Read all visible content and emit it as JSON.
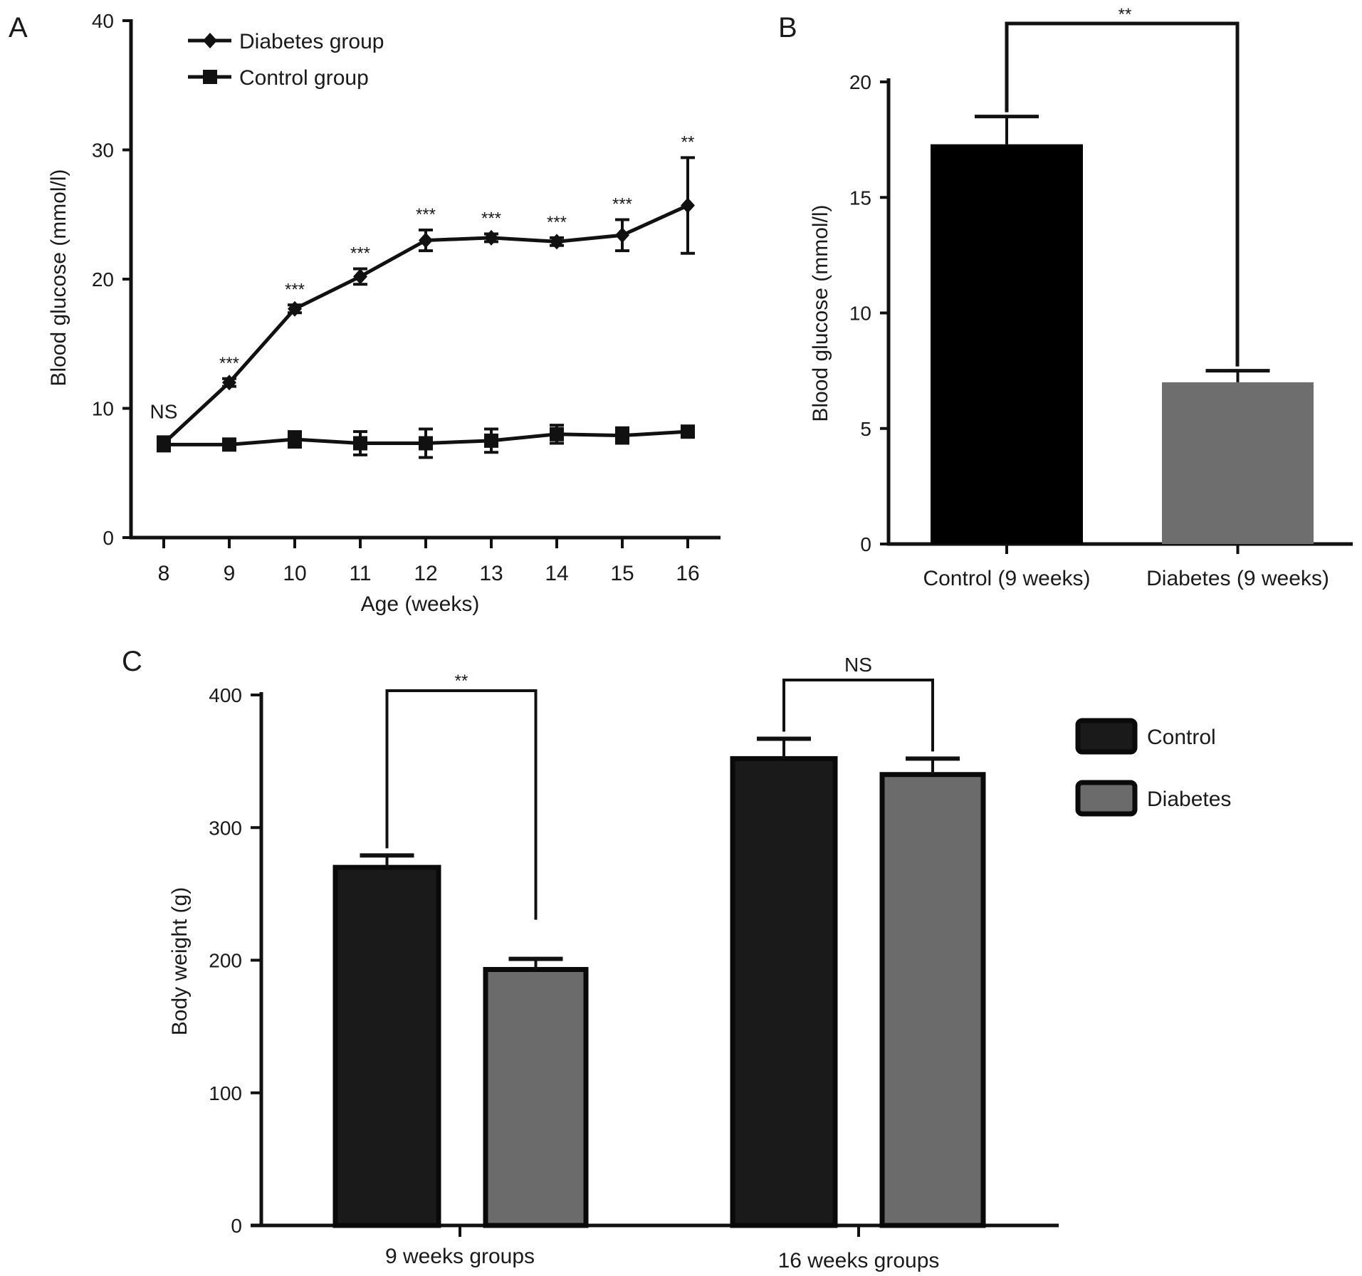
{
  "chart_data": [
    {
      "panel": "A",
      "type": "line",
      "xlabel": "Age (weeks)",
      "ylabel": "Blood glucose (mmol/l)",
      "x": [
        8,
        9,
        10,
        11,
        12,
        13,
        14,
        15,
        16
      ],
      "ylim": [
        0,
        40
      ],
      "yticks": [
        0,
        10,
        20,
        30,
        40
      ],
      "legend_position": "top-left",
      "series": [
        {
          "name": "Diabetes group",
          "marker": "diamond",
          "values": [
            7.3,
            12.0,
            17.7,
            20.2,
            23.0,
            23.2,
            22.9,
            23.4,
            25.7
          ],
          "errors": [
            0.5,
            0.3,
            0.3,
            0.6,
            0.8,
            0.3,
            0.3,
            1.2,
            3.7
          ]
        },
        {
          "name": "Control group",
          "marker": "square",
          "values": [
            7.2,
            7.2,
            7.6,
            7.3,
            7.3,
            7.5,
            8.0,
            7.9,
            8.2
          ],
          "errors": [
            0.5,
            0.3,
            0.6,
            0.9,
            1.1,
            0.9,
            0.7,
            0.6,
            0.3
          ]
        }
      ],
      "annotations": [
        "NS",
        "***",
        "***",
        "***",
        "***",
        "***",
        "***",
        "***",
        "**"
      ]
    },
    {
      "panel": "B",
      "type": "bar",
      "ylabel": "Blood glucose (mmol/l)",
      "categories": [
        "Control (9 weeks)",
        "Diabetes (9 weeks)"
      ],
      "values": [
        17.3,
        7.0
      ],
      "errors": [
        1.2,
        0.5
      ],
      "colors": [
        "#000000",
        "#6e6e6e"
      ],
      "ylim": [
        0,
        20
      ],
      "yticks": [
        0,
        5,
        10,
        15,
        20
      ],
      "significance": "**"
    },
    {
      "panel": "C",
      "type": "bar",
      "ylabel": "Body weight (g)",
      "categories": [
        "9 weeks groups",
        "16 weeks groups"
      ],
      "series": [
        {
          "name": "Control",
          "color": "#1a1a1a",
          "values": [
            270,
            352
          ],
          "errors": [
            9,
            15
          ]
        },
        {
          "name": "Diabetes",
          "color": "#6b6b6b",
          "values": [
            193,
            340
          ],
          "errors": [
            8,
            12
          ]
        }
      ],
      "ylim": [
        0,
        400
      ],
      "yticks": [
        0,
        100,
        200,
        300,
        400
      ],
      "legend_position": "right",
      "significance": [
        "**",
        "NS"
      ]
    }
  ],
  "panel_labels": [
    "A",
    "B",
    "C"
  ]
}
